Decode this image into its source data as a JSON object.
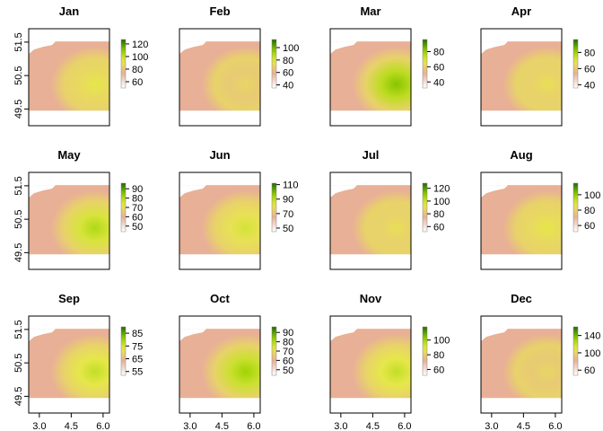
{
  "chart_data": {
    "type": "heatmap",
    "description_axes": {
      "xlim": [
        2.5,
        6.3
      ],
      "ylim": [
        49.0,
        51.9
      ]
    },
    "x_ticks": [
      3.0,
      4.5,
      6.0
    ],
    "x_tick_labels": [
      "3.0",
      "4.5",
      "6.0"
    ],
    "y_ticks": [
      49.5,
      50.5,
      51.5
    ],
    "y_tick_labels": [
      "49.5",
      "50.5",
      "51.5"
    ],
    "data_extent": {
      "x": [
        2.5,
        6.3
      ],
      "y": [
        49.45,
        51.52
      ]
    },
    "colors": {
      "low": "#ffffff",
      "mid1": "#e8b096",
      "mid2": "#e8e84c",
      "mid3": "#9ad300",
      "high": "#1e6a00"
    },
    "panels": [
      {
        "title": "Jan",
        "legend_ticks": [
          60,
          80,
          100,
          120
        ],
        "range": [
          50,
          127
        ],
        "intensity": 0.55
      },
      {
        "title": "Feb",
        "legend_ticks": [
          40,
          60,
          80,
          100
        ],
        "range": [
          35,
          113
        ],
        "intensity": 0.45
      },
      {
        "title": "Mar",
        "legend_ticks": [
          40,
          60,
          80
        ],
        "range": [
          32,
          96
        ],
        "intensity": 0.8
      },
      {
        "title": "Apr",
        "legend_ticks": [
          40,
          60,
          80
        ],
        "range": [
          36,
          96
        ],
        "intensity": 0.5
      },
      {
        "title": "May",
        "legend_ticks": [
          50,
          60,
          70,
          80,
          90
        ],
        "range": [
          44,
          96
        ],
        "intensity": 0.7
      },
      {
        "title": "Jun",
        "legend_ticks": [
          50,
          70,
          90,
          110
        ],
        "range": [
          45,
          112
        ],
        "intensity": 0.6
      },
      {
        "title": "Jul",
        "legend_ticks": [
          60,
          80,
          100,
          120
        ],
        "range": [
          52,
          128
        ],
        "intensity": 0.5
      },
      {
        "title": "Aug",
        "legend_ticks": [
          60,
          80,
          100
        ],
        "range": [
          52,
          115
        ],
        "intensity": 0.55
      },
      {
        "title": "Sep",
        "legend_ticks": [
          55,
          65,
          75,
          85
        ],
        "range": [
          52,
          90
        ],
        "intensity": 0.65
      },
      {
        "title": "Oct",
        "legend_ticks": [
          50,
          60,
          70,
          80,
          90
        ],
        "range": [
          44,
          96
        ],
        "intensity": 0.75
      },
      {
        "title": "Nov",
        "legend_ticks": [
          60,
          80,
          100
        ],
        "range": [
          52,
          118
        ],
        "intensity": 0.65
      },
      {
        "title": "Dec",
        "legend_ticks": [
          60,
          100,
          140
        ],
        "range": [
          48,
          160
        ],
        "intensity": 0.45
      }
    ]
  }
}
